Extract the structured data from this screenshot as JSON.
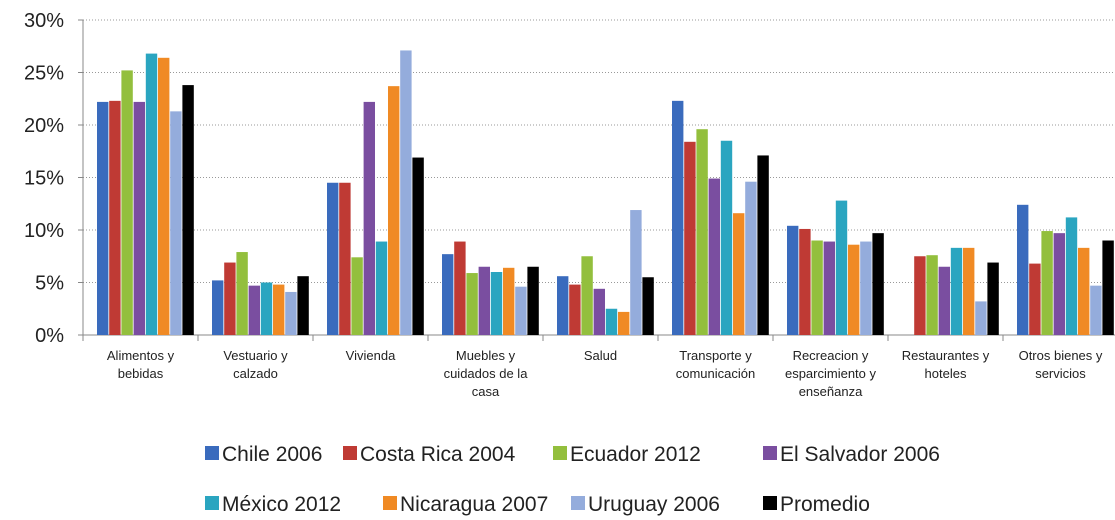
{
  "chart_data": {
    "type": "bar",
    "categories": [
      "Alimentos y bebidas",
      "Vestuario y calzado",
      "Vivienda",
      "Muebles y cuidados de la casa",
      "Salud",
      "Transporte y comunicación",
      "Recreacion y esparcimiento y enseñanza",
      "Restaurantes y hoteles",
      "Otros bienes y servicios"
    ],
    "series": [
      {
        "name": "Chile 2006",
        "color": "#3a6bbd",
        "values": [
          22.2,
          5.2,
          14.5,
          7.7,
          5.6,
          22.3,
          10.4,
          null,
          12.4
        ]
      },
      {
        "name": "Costa Rica 2004",
        "color": "#bf3a34",
        "values": [
          22.3,
          6.9,
          14.5,
          8.9,
          4.8,
          18.4,
          10.1,
          7.5,
          6.8
        ]
      },
      {
        "name": "Ecuador 2012",
        "color": "#93bf3d",
        "values": [
          25.2,
          7.9,
          7.4,
          5.9,
          7.5,
          19.6,
          9.0,
          7.6,
          9.9
        ]
      },
      {
        "name": "El Salvador 2006",
        "color": "#7a4ea0",
        "values": [
          22.2,
          4.7,
          22.2,
          6.5,
          4.4,
          14.9,
          8.9,
          6.5,
          9.7
        ]
      },
      {
        "name": "México 2012",
        "color": "#2aa5c0",
        "values": [
          26.8,
          5.0,
          8.9,
          6.0,
          2.5,
          18.5,
          12.8,
          8.3,
          11.2
        ]
      },
      {
        "name": "Nicaragua 2007",
        "color": "#f08a24",
        "values": [
          26.4,
          4.8,
          23.7,
          6.4,
          2.2,
          11.6,
          8.6,
          8.3,
          8.3
        ]
      },
      {
        "name": "Uruguay 2006",
        "color": "#94acdc",
        "values": [
          21.3,
          4.1,
          27.1,
          4.6,
          11.9,
          14.6,
          8.9,
          3.2,
          4.7
        ]
      },
      {
        "name": "Promedio",
        "color": "#000000",
        "values": [
          23.8,
          5.6,
          16.9,
          6.5,
          5.5,
          17.1,
          9.7,
          6.9,
          9.0
        ]
      }
    ],
    "ylim": [
      0,
      30
    ],
    "yticks": [
      {
        "value": 0,
        "label": "0%"
      },
      {
        "value": 5,
        "label": "5%"
      },
      {
        "value": 10,
        "label": "10%"
      },
      {
        "value": 15,
        "label": "15%"
      },
      {
        "value": 20,
        "label": "20%"
      },
      {
        "value": 25,
        "label": "25%"
      },
      {
        "value": 30,
        "label": "30%"
      }
    ],
    "grid": true,
    "legend": "bottom"
  }
}
